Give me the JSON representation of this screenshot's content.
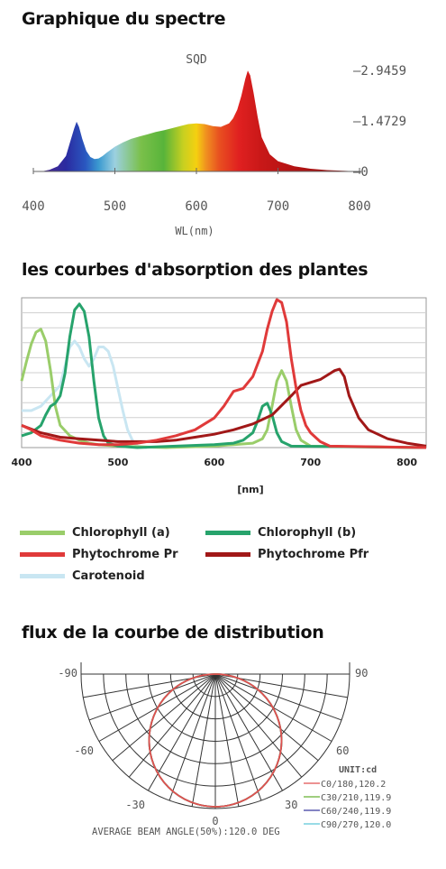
{
  "sections": {
    "spectrum_title": "Graphique du spectre",
    "absorption_title": "les courbes d'absorption des plantes",
    "distribution_title": "flux de la courbe de distribution"
  },
  "chart_data": [
    {
      "type": "area",
      "title": "SQD",
      "xlabel": "WL(nm)",
      "xlim": [
        400,
        800
      ],
      "ylim": [
        0,
        2.9459
      ],
      "x_ticks": [
        "400",
        "500",
        "600",
        "700",
        "800"
      ],
      "y_ticks": [
        "–2.9459",
        "–1.4729",
        "–0"
      ],
      "series": [
        {
          "x": [
            410,
            420,
            430,
            440,
            445,
            450,
            453,
            456,
            460,
            465,
            470,
            475,
            480,
            485,
            490,
            500,
            510,
            520,
            530,
            540,
            550,
            560,
            570,
            580,
            590,
            600,
            610,
            620,
            630,
            640,
            645,
            650,
            655,
            660,
            663,
            666,
            670,
            675,
            680,
            690,
            700,
            720,
            740,
            760,
            780,
            800
          ],
          "values": [
            0.0,
            0.05,
            0.15,
            0.45,
            0.85,
            1.25,
            1.45,
            1.3,
            0.95,
            0.6,
            0.42,
            0.36,
            0.38,
            0.45,
            0.55,
            0.72,
            0.85,
            0.95,
            1.02,
            1.08,
            1.15,
            1.2,
            1.26,
            1.32,
            1.38,
            1.4,
            1.38,
            1.32,
            1.3,
            1.4,
            1.55,
            1.8,
            2.2,
            2.7,
            2.94,
            2.8,
            2.3,
            1.6,
            1.0,
            0.5,
            0.3,
            0.15,
            0.08,
            0.04,
            0.02,
            0.0
          ]
        }
      ]
    },
    {
      "type": "line",
      "xlabel": "[nm]",
      "xlim": [
        400,
        820
      ],
      "ylim": [
        0,
        100
      ],
      "grid": true,
      "x_ticks": [
        "400",
        "500",
        "600",
        "700",
        "800"
      ],
      "legend_position": "bottom",
      "series": [
        {
          "name": "Chlorophyll (a)",
          "color": "#9acd6a",
          "x": [
            400,
            405,
            410,
            415,
            420,
            425,
            430,
            435,
            440,
            450,
            460,
            470,
            480,
            500,
            550,
            600,
            620,
            640,
            650,
            655,
            660,
            665,
            670,
            675,
            680,
            685,
            690,
            700,
            820
          ],
          "values": [
            45,
            58,
            70,
            78,
            80,
            72,
            52,
            28,
            15,
            8,
            5,
            3,
            2,
            1,
            0,
            1,
            2,
            3,
            6,
            12,
            28,
            45,
            52,
            45,
            28,
            12,
            5,
            1,
            0
          ]
        },
        {
          "name": "Chlorophyll (b)",
          "color": "#27a36c",
          "x": [
            400,
            410,
            420,
            425,
            430,
            435,
            440,
            445,
            450,
            455,
            460,
            465,
            470,
            475,
            480,
            485,
            490,
            500,
            520,
            600,
            620,
            630,
            640,
            645,
            650,
            655,
            660,
            665,
            670,
            680,
            820
          ],
          "values": [
            8,
            10,
            15,
            22,
            28,
            30,
            35,
            50,
            75,
            93,
            97,
            92,
            75,
            45,
            20,
            8,
            3,
            1,
            0,
            2,
            3,
            5,
            10,
            18,
            28,
            30,
            22,
            10,
            4,
            1,
            0
          ]
        },
        {
          "name": "Phytochrome Pr",
          "color": "#e03a3a",
          "x": [
            400,
            410,
            420,
            440,
            460,
            480,
            500,
            520,
            540,
            560,
            580,
            600,
            610,
            620,
            630,
            640,
            650,
            655,
            660,
            665,
            670,
            675,
            680,
            685,
            690,
            695,
            700,
            710,
            720,
            820
          ],
          "values": [
            15,
            12,
            8,
            5,
            3,
            2,
            2,
            3,
            5,
            8,
            12,
            20,
            28,
            38,
            40,
            48,
            65,
            80,
            92,
            100,
            98,
            85,
            60,
            40,
            25,
            15,
            10,
            4,
            1,
            0
          ]
        },
        {
          "name": "Phytochrome Pfr",
          "color": "#a11818",
          "x": [
            400,
            420,
            440,
            460,
            480,
            500,
            520,
            540,
            560,
            580,
            600,
            620,
            640,
            660,
            680,
            690,
            700,
            710,
            720,
            725,
            730,
            735,
            740,
            750,
            760,
            780,
            800,
            820
          ],
          "values": [
            15,
            10,
            7,
            6,
            5,
            4,
            4,
            4,
            5,
            7,
            9,
            12,
            16,
            22,
            35,
            42,
            44,
            46,
            50,
            52,
            53,
            48,
            35,
            20,
            12,
            6,
            3,
            1
          ]
        },
        {
          "name": "Carotenoid",
          "color": "#c9e6f2",
          "x": [
            400,
            410,
            420,
            430,
            440,
            445,
            450,
            455,
            460,
            465,
            470,
            475,
            480,
            485,
            490,
            495,
            500,
            505,
            510,
            515,
            520,
            530
          ],
          "values": [
            25,
            25,
            28,
            35,
            42,
            55,
            68,
            72,
            68,
            60,
            55,
            60,
            68,
            68,
            65,
            55,
            40,
            25,
            12,
            5,
            1,
            0
          ]
        }
      ]
    },
    {
      "type": "polar",
      "unit_label": "UNIT:cd",
      "angle_labels": [
        "-90",
        "90",
        "-60",
        "60",
        "-30",
        "30",
        "0"
      ],
      "footer": "AVERAGE BEAM ANGLE(50%):120.0 DEG",
      "series": [
        {
          "name": "C0/180,120.2",
          "color": "#e05050"
        },
        {
          "name": "C30/210,119.9",
          "color": "#66b033"
        },
        {
          "name": "C60/240,119.9",
          "color": "#3a3aa0"
        },
        {
          "name": "C90/270,120.0",
          "color": "#5cc8d8"
        }
      ]
    }
  ]
}
